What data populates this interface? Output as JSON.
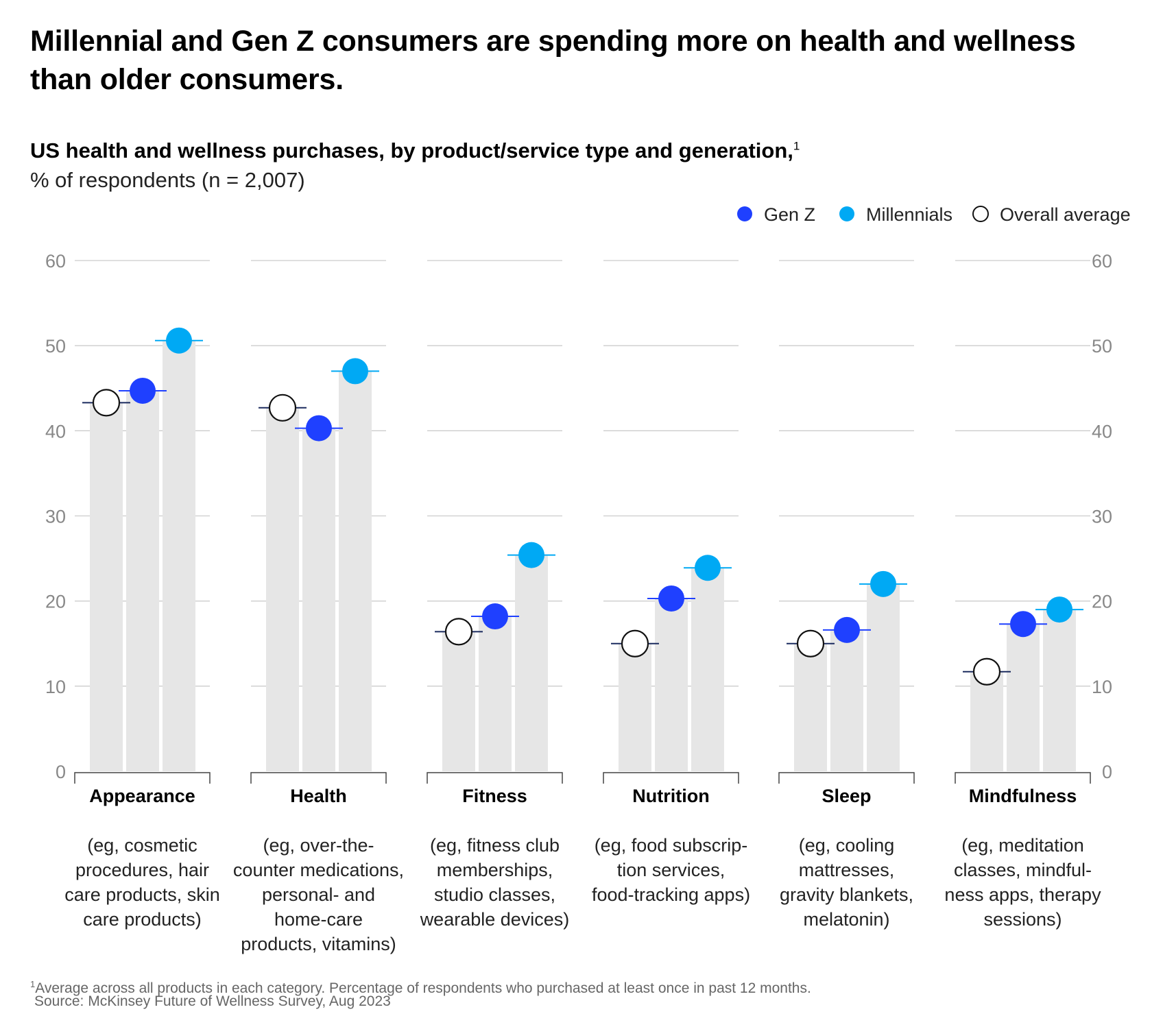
{
  "headline": "Millennial and Gen Z consumers are spending more on health and wellness than older consumers.",
  "subtitle": "US health and wellness purchases, by product/service type and generation,",
  "subtitle_note": "1",
  "unit": "% of respondents (n = 2,007)",
  "footnote_marker": "1",
  "footnote": "Average across all products in each category. Percentage of respondents who purchased at least once in past 12 months.",
  "source": "Source: McKinsey Future of Wellness Survey, Aug 2023",
  "colors": {
    "gen_z": "#1f40ff",
    "millennials": "#00a9f4",
    "overall": "#ffffff",
    "bar": "#e6e6e6",
    "grid": "#cccccc"
  },
  "chart_data": {
    "type": "bar",
    "ylim": [
      0,
      60
    ],
    "yticks": [
      0,
      10,
      20,
      30,
      40,
      50,
      60
    ],
    "grid": true,
    "legend_position": "top-right",
    "categories": [
      "Appearance",
      "Health",
      "Fitness",
      "Nutrition",
      "Sleep",
      "Mindfulness"
    ],
    "category_notes": [
      [
        "(eg, cosmetic",
        "procedures, hair",
        "care products, skin",
        "care products)"
      ],
      [
        "(eg, over-the-",
        "counter medications,",
        "personal- and",
        "home-care",
        "products, vitamins)"
      ],
      [
        "(eg, fitness club",
        "memberships,",
        "studio classes,",
        "wearable devices)"
      ],
      [
        "(eg, food subscrip-",
        "tion services,",
        "food-tracking apps)"
      ],
      [
        "(eg, cooling",
        "mattresses,",
        "gravity blankets,",
        "melatonin)"
      ],
      [
        "(eg, meditation",
        "classes, mindful-",
        "ness apps, therapy",
        "sessions)"
      ]
    ],
    "series": [
      {
        "name": "Overall average",
        "values": [
          43.3,
          42.7,
          16.4,
          15.0,
          15.0,
          11.7
        ]
      },
      {
        "name": "Gen Z",
        "values": [
          44.7,
          40.3,
          18.2,
          20.3,
          16.6,
          17.3
        ]
      },
      {
        "name": "Millennials",
        "values": [
          50.6,
          47.0,
          25.4,
          23.9,
          22.0,
          19.0
        ]
      }
    ]
  }
}
